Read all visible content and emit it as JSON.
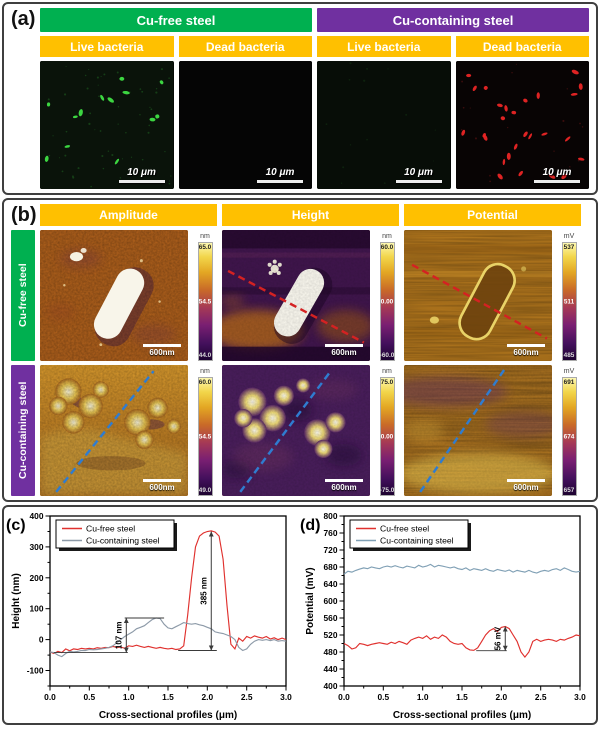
{
  "panel_a": {
    "label": "(a)",
    "subheader_color": "#ffc000",
    "marker_colors": {
      "live": "#3fe045",
      "dead": "#ea2525"
    },
    "groups": [
      {
        "title": "Cu-free steel",
        "color": "#00b050",
        "columns": [
          {
            "header": "Live bacteria",
            "scale_label": "10 μm"
          },
          {
            "header": "Dead bacteria",
            "scale_label": "10 μm"
          }
        ]
      },
      {
        "title": "Cu-containing steel",
        "color": "#7030a0",
        "columns": [
          {
            "header": "Live bacteria",
            "scale_label": "10 μm"
          },
          {
            "header": "Dead bacteria",
            "scale_label": "10 μm"
          }
        ]
      }
    ]
  },
  "panel_b": {
    "label": "(b)",
    "header_color": "#ffc000",
    "column_headers": [
      "Amplitude",
      "Height",
      "Potential"
    ],
    "dash_colors": {
      "cu_free": "#d42222",
      "cu_containing": "#2f7cd0"
    },
    "rows": [
      {
        "label": "Cu-free steel",
        "color": "#00b050",
        "cells": [
          {
            "scalebar": "600nm",
            "colorbar": {
              "unit": "nm",
              "top": "65.0",
              "mid": "54.5",
              "bottom": "44.0"
            }
          },
          {
            "scalebar": "600nm",
            "colorbar": {
              "unit": "nm",
              "top": "60.0",
              "mid": "0.00",
              "bottom": "-60.0"
            }
          },
          {
            "scalebar": "600nm",
            "colorbar": {
              "unit": "mV",
              "top": "537",
              "mid": "511",
              "bottom": "485"
            }
          }
        ]
      },
      {
        "label": "Cu-containing steel",
        "color": "#7030a0",
        "cells": [
          {
            "scalebar": "600nm",
            "colorbar": {
              "unit": "nm",
              "top": "60.0",
              "mid": "54.5",
              "bottom": "49.0"
            }
          },
          {
            "scalebar": "600nm",
            "colorbar": {
              "unit": "nm",
              "top": "75.0",
              "mid": "0.00",
              "bottom": "-75.0"
            }
          },
          {
            "scalebar": "600nm",
            "colorbar": {
              "unit": "mV",
              "top": "691",
              "mid": "674",
              "bottom": "657"
            }
          }
        ]
      }
    ]
  },
  "chart_data": [
    {
      "id": "c",
      "type": "line",
      "panel_label": "(c)",
      "xlabel": "Cross-sectional profiles (μm)",
      "ylabel": "Height (nm)",
      "xlim": [
        0,
        3
      ],
      "ylim": [
        -150,
        400
      ],
      "xticks": [
        0,
        0.5,
        1,
        1.5,
        2,
        2.5,
        3
      ],
      "x_minor": 0.25,
      "yticks": [
        -100,
        0,
        100,
        200,
        300,
        400
      ],
      "y_minor": 50,
      "legend": [
        "Cu-free steel",
        "Cu-containing steel"
      ],
      "legend_position": "top-left",
      "x": [
        0,
        0.05,
        0.1,
        0.15,
        0.2,
        0.25,
        0.3,
        0.35,
        0.4,
        0.45,
        0.5,
        0.55,
        0.6,
        0.65,
        0.7,
        0.75,
        0.8,
        0.85,
        0.9,
        0.95,
        1,
        1.05,
        1.1,
        1.15,
        1.2,
        1.25,
        1.3,
        1.35,
        1.4,
        1.45,
        1.5,
        1.55,
        1.6,
        1.65,
        1.7,
        1.75,
        1.8,
        1.85,
        1.9,
        1.95,
        2,
        2.05,
        2.1,
        2.15,
        2.2,
        2.25,
        2.3,
        2.35,
        2.4,
        2.45,
        2.5,
        2.55,
        2.6,
        2.65,
        2.7,
        2.75,
        2.8,
        2.85,
        2.9,
        2.95,
        3
      ],
      "series": [
        {
          "name": "Cu-free steel",
          "color": "#e0312e",
          "y": [
            -40,
            -45,
            -38,
            -42,
            -30,
            -36,
            -30,
            -32,
            -28,
            -30,
            -28,
            -30,
            -26,
            -28,
            -25,
            -26,
            -22,
            -25,
            -24,
            -28,
            -20,
            -22,
            -18,
            -22,
            -25,
            -22,
            -25,
            -28,
            -25,
            -28,
            -30,
            -28,
            -32,
            -30,
            -20,
            80,
            200,
            300,
            335,
            345,
            350,
            352,
            348,
            335,
            260,
            110,
            -15,
            -30,
            5,
            -5,
            10,
            5,
            12,
            8,
            5,
            10,
            2,
            6,
            0,
            5,
            0
          ]
        },
        {
          "name": "Cu-containing steel",
          "color": "#8d9aa8",
          "y": [
            -40,
            -42,
            -50,
            -55,
            -45,
            -38,
            -40,
            -38,
            -35,
            -35,
            -32,
            -33,
            -32,
            -30,
            -28,
            -25,
            -20,
            -10,
            0,
            10,
            18,
            25,
            35,
            40,
            45,
            55,
            65,
            70,
            68,
            50,
            38,
            35,
            42,
            48,
            55,
            52,
            50,
            52,
            48,
            45,
            40,
            35,
            25,
            22,
            20,
            15,
            10,
            0,
            -25,
            -35,
            -30,
            -15,
            -5,
            0,
            -2,
            0,
            -3,
            0,
            -5,
            -3,
            -5
          ]
        }
      ],
      "annotations": [
        {
          "text": "385 nm",
          "x": 2.05,
          "y1": -35,
          "y2": 350,
          "caps": [
            {
              "y": -35,
              "x1": 1.63,
              "x2": 2.12
            }
          ]
        },
        {
          "text": "107 nm",
          "x": 0.97,
          "y1": -42,
          "y2": 70,
          "caps": [
            {
              "y": 70,
              "x1": 0.95,
              "x2": 1.45
            },
            {
              "y": -42,
              "x1": 0.05,
              "x2": 0.99
            }
          ]
        }
      ]
    },
    {
      "id": "d",
      "type": "line",
      "panel_label": "(d)",
      "xlabel": "Cross-sectional profiles (μm)",
      "ylabel": "Potential (mV)",
      "xlim": [
        0,
        3
      ],
      "ylim": [
        400,
        800
      ],
      "xticks": [
        0,
        0.5,
        1,
        1.5,
        2,
        2.5,
        3
      ],
      "x_minor": 0.25,
      "yticks": [
        400,
        440,
        480,
        520,
        560,
        600,
        640,
        680,
        720,
        760,
        800
      ],
      "y_minor": 20,
      "legend": [
        "Cu-free steel",
        "Cu-containing steel"
      ],
      "legend_position": "top-left",
      "x": [
        0,
        0.05,
        0.1,
        0.15,
        0.2,
        0.25,
        0.3,
        0.35,
        0.4,
        0.45,
        0.5,
        0.55,
        0.6,
        0.65,
        0.7,
        0.75,
        0.8,
        0.85,
        0.9,
        0.95,
        1,
        1.05,
        1.1,
        1.15,
        1.2,
        1.25,
        1.3,
        1.35,
        1.4,
        1.45,
        1.5,
        1.55,
        1.6,
        1.65,
        1.7,
        1.75,
        1.8,
        1.85,
        1.9,
        1.95,
        2,
        2.05,
        2.1,
        2.15,
        2.2,
        2.25,
        2.3,
        2.35,
        2.4,
        2.45,
        2.5,
        2.55,
        2.6,
        2.65,
        2.7,
        2.75,
        2.8,
        2.85,
        2.9,
        2.95,
        3
      ],
      "series": [
        {
          "name": "Cu-free steel",
          "color": "#e0312e",
          "y": [
            500,
            495,
            487,
            490,
            500,
            498,
            495,
            498,
            500,
            502,
            500,
            498,
            503,
            500,
            505,
            502,
            498,
            508,
            512,
            515,
            512,
            518,
            510,
            515,
            512,
            520,
            515,
            505,
            500,
            498,
            500,
            490,
            485,
            484,
            490,
            505,
            520,
            530,
            535,
            528,
            538,
            540,
            535,
            520,
            505,
            480,
            468,
            480,
            505,
            510,
            505,
            508,
            510,
            508,
            505,
            510,
            508,
            512,
            515,
            520,
            518
          ]
        },
        {
          "name": "Cu-containing steel",
          "color": "#80a0b5",
          "y": [
            663,
            670,
            668,
            672,
            675,
            678,
            676,
            680,
            678,
            676,
            680,
            682,
            680,
            683,
            680,
            678,
            682,
            680,
            678,
            684,
            680,
            682,
            686,
            680,
            684,
            682,
            680,
            678,
            680,
            676,
            674,
            678,
            672,
            676,
            674,
            672,
            676,
            672,
            670,
            674,
            672,
            670,
            673,
            668,
            672,
            670,
            668,
            672,
            668,
            666,
            670,
            672,
            670,
            674,
            676,
            672,
            678,
            674,
            670,
            668,
            670
          ]
        }
      ],
      "annotations": [
        {
          "text": "56 mV",
          "x": 2.05,
          "y1": 483,
          "y2": 540,
          "caps": [
            {
              "y": 483,
              "x1": 1.68,
              "x2": 2.07
            }
          ]
        }
      ]
    }
  ]
}
